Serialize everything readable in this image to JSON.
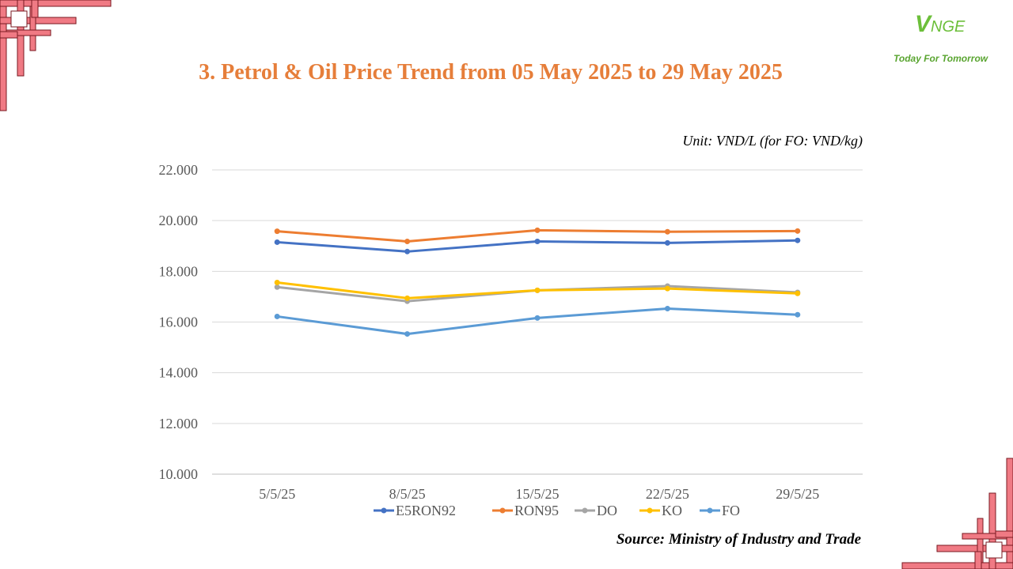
{
  "header": {
    "title": "3. Petrol & Oil Price Trend from 05 May 2025 to 29 May 2025",
    "logo_mark": "V",
    "logo_rest": "NGE",
    "logo_tagline": "Today For Tomorrow"
  },
  "unit_note": "Unit: VND/L (for FO: VND/kg)",
  "source_note": "Source: Ministry of Industry and Trade",
  "chart_data": {
    "type": "line",
    "categories": [
      "5/5/25",
      "8/5/25",
      "15/5/25",
      "22/5/25",
      "29/5/25"
    ],
    "ylim": [
      10000,
      22000
    ],
    "yticks": [
      10000,
      12000,
      14000,
      16000,
      18000,
      20000,
      22000
    ],
    "ytick_labels": [
      "10.000",
      "12.000",
      "14.000",
      "16.000",
      "18.000",
      "20.000",
      "22.000"
    ],
    "grid": true,
    "legend_position": "bottom",
    "series": [
      {
        "name": "E5RON92",
        "color": "#4472c4",
        "values": [
          19150,
          18780,
          19180,
          19120,
          19220
        ]
      },
      {
        "name": "RON95",
        "color": "#ed7d31",
        "values": [
          19580,
          19180,
          19620,
          19560,
          19590
        ]
      },
      {
        "name": "DO",
        "color": "#a5a5a5",
        "values": [
          17380,
          16820,
          17250,
          17420,
          17170
        ]
      },
      {
        "name": "KO",
        "color": "#ffc000",
        "values": [
          17560,
          16940,
          17250,
          17320,
          17130
        ]
      },
      {
        "name": "FO",
        "color": "#5b9bd5",
        "values": [
          16220,
          15530,
          16160,
          16530,
          16290
        ]
      }
    ]
  }
}
